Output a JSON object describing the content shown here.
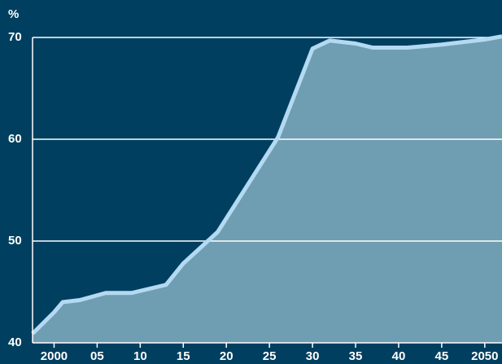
{
  "chart_data": {
    "type": "area",
    "y_unit": "%",
    "x": [
      1997.5,
      2000,
      2001,
      2003,
      2006,
      2009,
      2013,
      2015,
      2019,
      2026,
      2030,
      2032,
      2035,
      2037,
      2041,
      2045,
      2050,
      2052
    ],
    "series": [
      {
        "color": "#b3daf2",
        "fill": "#6f9db2",
        "values": [
          40.9,
          43.0,
          44.0,
          44.2,
          44.9,
          44.9,
          45.7,
          47.8,
          50.9,
          60.2,
          68.9,
          69.7,
          69.4,
          69.0,
          69.0,
          69.3,
          69.8,
          70.1
        ]
      }
    ],
    "xlim": [
      1997.5,
      2052
    ],
    "xticks": [
      2000,
      {
        "value": 2005,
        "label": "05"
      },
      {
        "value": 2010,
        "label": "10"
      },
      {
        "value": 2015,
        "label": "15"
      },
      {
        "value": 2020,
        "label": "20"
      },
      {
        "value": 2025,
        "label": "25"
      },
      {
        "value": 2030,
        "label": "30"
      },
      {
        "value": 2035,
        "label": "35"
      },
      {
        "value": 2040,
        "label": "40"
      },
      {
        "value": 2045,
        "label": "45"
      },
      2050
    ],
    "ylim": [
      40,
      70
    ],
    "yticks": [
      40,
      50,
      60,
      70
    ],
    "grid": true
  }
}
